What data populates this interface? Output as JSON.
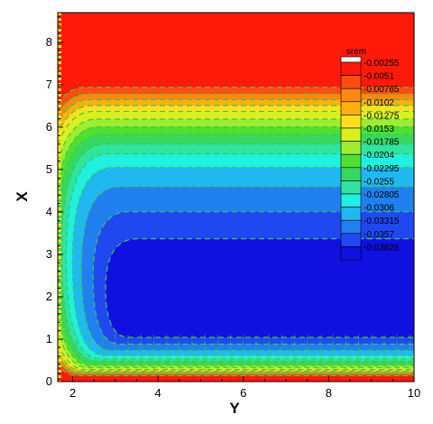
{
  "chart_data": {
    "type": "heatmap",
    "title": "",
    "xlabel": "Y",
    "ylabel": "X",
    "xlim": [
      1.65,
      10
    ],
    "ylim": [
      0,
      8.7
    ],
    "x_ticks": [
      "2",
      "4",
      "6",
      "8",
      "10"
    ],
    "y_ticks": [
      "0",
      "1",
      "2",
      "3",
      "4",
      "5",
      "6",
      "7",
      "8"
    ],
    "grid": false,
    "legend": {
      "title": "srem",
      "placement": "right-inside",
      "levels": [
        "-0.00255",
        "-0.0051",
        "-0.00765",
        "-0.0102",
        "-0.01275",
        "-0.0153",
        "-0.01785",
        "-0.0204",
        "-0.02295",
        "-0.0255",
        "-0.02805",
        "-0.0306",
        "-0.03315",
        "-0.0357",
        "-0.03825"
      ],
      "colors": [
        "#ff1a0a",
        "#ff4c10",
        "#ff8810",
        "#ffb010",
        "#ffe020",
        "#d8f020",
        "#a0ec30",
        "#50e030",
        "#38d860",
        "#30e4a0",
        "#20f0e0",
        "#20b8f0",
        "#2080f0",
        "#2048f0",
        "#1010e0"
      ]
    },
    "contour_line_color": "#3cc848"
  }
}
